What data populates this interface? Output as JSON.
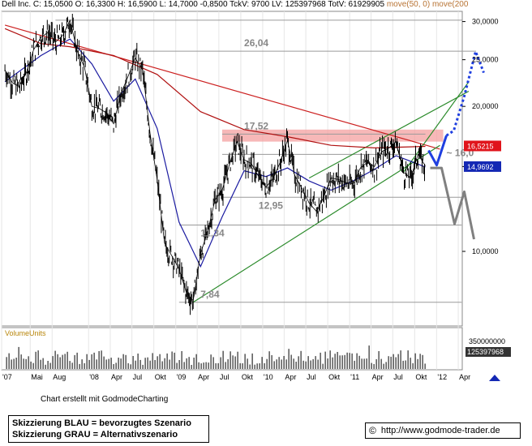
{
  "header": {
    "symbol": "Dell Inc.",
    "text": "C: 15,0500  O: 16,3300  H: 16,5900  L: 14,7000  -0,8500  TckV: 9700  LV: 125397968  TotV: 61929905",
    "ma_text": "move(50, 0)  move(200"
  },
  "volume_label": "VolumeUnits",
  "credit": "Chart erstellt mit GodmodeCharting",
  "legend": {
    "line1": "Skizzierung BLAU = bevorzugtes Szenario",
    "line2": "Skizzierung GRAU = Alternativszenario"
  },
  "footer": {
    "copyright_symbol": "©",
    "url": "http://www.godmode-trader.de"
  },
  "colors": {
    "price": "#000000",
    "ma50": "#1a1aa0",
    "ma200": "#b01010",
    "downtrend": "#cc2020",
    "channel": "#2a8a2a",
    "resistance_zone": "#f4a0a0",
    "levels": "#888888",
    "blue_scenario": "#1f3fe0",
    "grey_scenario": "#808080",
    "price_badge": "#e0141b",
    "ma_badge": "#1428b4"
  },
  "chart_data": [
    {
      "type": "line",
      "panel": "price",
      "yscale": "log",
      "ylim": [
        7.0,
        31.5
      ],
      "x_range": [
        "2007-01",
        "2012-06"
      ],
      "x_ticks": [
        {
          "date": "2007-01",
          "label": "'07"
        },
        {
          "date": "2007-05",
          "label": "Mai"
        },
        {
          "date": "2007-08",
          "label": "Aug"
        },
        {
          "date": "2008-01",
          "label": "'08"
        },
        {
          "date": "2008-04",
          "label": "Apr"
        },
        {
          "date": "2008-07",
          "label": "Jul"
        },
        {
          "date": "2008-10",
          "label": "Okt"
        },
        {
          "date": "2009-01",
          "label": "'09"
        },
        {
          "date": "2009-04",
          "label": "Apr"
        },
        {
          "date": "2009-07",
          "label": "Jul"
        },
        {
          "date": "2009-10",
          "label": "Okt"
        },
        {
          "date": "2010-01",
          "label": "'10"
        },
        {
          "date": "2010-04",
          "label": "Apr"
        },
        {
          "date": "2010-07",
          "label": "Jul"
        },
        {
          "date": "2010-10",
          "label": "Okt"
        },
        {
          "date": "2011-01",
          "label": "'11"
        },
        {
          "date": "2011-04",
          "label": "Apr"
        },
        {
          "date": "2011-07",
          "label": "Jul"
        },
        {
          "date": "2011-10",
          "label": "Okt"
        },
        {
          "date": "2012-01",
          "label": "'12"
        },
        {
          "date": "2012-04",
          "label": "Apr"
        }
      ],
      "y_ticks": [
        {
          "value": 10,
          "label": "10,0000"
        },
        {
          "value": 15,
          "label": "15,0000"
        },
        {
          "value": 20,
          "label": "20,0000"
        },
        {
          "value": 25,
          "label": "25,0000"
        },
        {
          "value": 30,
          "label": "30,0000"
        }
      ],
      "series": [
        {
          "role": "price",
          "points": [
            [
              "2007-01",
              23.8
            ],
            [
              "2007-02",
              22.4
            ],
            [
              "2007-03",
              22.0
            ],
            [
              "2007-04",
              23.5
            ],
            [
              "2007-05",
              26.2
            ],
            [
              "2007-06",
              27.8
            ],
            [
              "2007-07",
              28.5
            ],
            [
              "2007-08",
              27.2
            ],
            [
              "2007-09",
              28.1
            ],
            [
              "2007-10",
              30.2
            ],
            [
              "2007-11",
              26.0
            ],
            [
              "2007-12",
              24.1
            ],
            [
              "2008-01",
              20.0
            ],
            [
              "2008-02",
              19.8
            ],
            [
              "2008-03",
              19.4
            ],
            [
              "2008-04",
              18.4
            ],
            [
              "2008-05",
              21.2
            ],
            [
              "2008-06",
              23.1
            ],
            [
              "2008-07",
              25.2
            ],
            [
              "2008-08",
              23.8
            ],
            [
              "2008-09",
              17.6
            ],
            [
              "2008-10",
              14.1
            ],
            [
              "2008-11",
              10.4
            ],
            [
              "2008-12",
              9.8
            ],
            [
              "2009-01",
              9.2
            ],
            [
              "2009-02",
              8.2
            ],
            [
              "2009-03",
              7.9
            ],
            [
              "2009-04",
              9.9
            ],
            [
              "2009-05",
              11.0
            ],
            [
              "2009-06",
              12.8
            ],
            [
              "2009-07",
              13.4
            ],
            [
              "2009-08",
              15.2
            ],
            [
              "2009-09",
              16.9
            ],
            [
              "2009-10",
              15.5
            ],
            [
              "2009-11",
              15.2
            ],
            [
              "2009-12",
              14.3
            ],
            [
              "2010-01",
              13.6
            ],
            [
              "2010-02",
              14.2
            ],
            [
              "2010-03",
              15.3
            ],
            [
              "2010-04",
              17.0
            ],
            [
              "2010-05",
              14.4
            ],
            [
              "2010-06",
              13.5
            ],
            [
              "2010-07",
              12.6
            ],
            [
              "2010-08",
              12.1
            ],
            [
              "2010-09",
              13.0
            ],
            [
              "2010-10",
              14.2
            ],
            [
              "2010-11",
              14.1
            ],
            [
              "2010-12",
              13.9
            ],
            [
              "2011-01",
              13.8
            ],
            [
              "2011-02",
              14.9
            ],
            [
              "2011-03",
              15.3
            ],
            [
              "2011-04",
              15.0
            ],
            [
              "2011-05",
              16.1
            ],
            [
              "2011-06",
              16.4
            ],
            [
              "2011-07",
              16.9
            ],
            [
              "2011-08",
              14.6
            ],
            [
              "2011-09",
              14.2
            ],
            [
              "2011-10",
              15.9
            ],
            [
              "2011-11",
              15.05
            ]
          ]
        },
        {
          "role": "ma50",
          "points": [
            [
              "2007-01",
              22.5
            ],
            [
              "2007-06",
              25.5
            ],
            [
              "2007-10",
              27.6
            ],
            [
              "2008-01",
              24.5
            ],
            [
              "2008-04",
              20.5
            ],
            [
              "2008-07",
              22.8
            ],
            [
              "2008-10",
              18.0
            ],
            [
              "2009-01",
              11.5
            ],
            [
              "2009-04",
              9.3
            ],
            [
              "2009-07",
              11.8
            ],
            [
              "2009-10",
              14.7
            ],
            [
              "2010-01",
              14.3
            ],
            [
              "2010-04",
              14.9
            ],
            [
              "2010-07",
              14.0
            ],
            [
              "2010-10",
              13.4
            ],
            [
              "2011-01",
              14.0
            ],
            [
              "2011-04",
              14.8
            ],
            [
              "2011-07",
              15.8
            ],
            [
              "2011-11",
              14.97
            ]
          ]
        },
        {
          "role": "ma200",
          "points": [
            [
              "2007-01",
              29.0
            ],
            [
              "2007-06",
              27.0
            ],
            [
              "2007-10",
              26.6
            ],
            [
              "2008-04",
              25.5
            ],
            [
              "2008-10",
              23.3
            ],
            [
              "2009-04",
              19.5
            ],
            [
              "2009-10",
              17.9
            ],
            [
              "2010-04",
              17.3
            ],
            [
              "2010-10",
              16.6
            ],
            [
              "2011-04",
              16.4
            ],
            [
              "2011-11",
              16.52
            ]
          ]
        }
      ],
      "annotations": {
        "level_labels": [
          {
            "value": 26.04,
            "label": "26,04"
          },
          {
            "value": 17.52,
            "label": "17,52"
          },
          {
            "value": 12.95,
            "label": "12,95"
          },
          {
            "value": 11.34,
            "label": "11,34"
          },
          {
            "value": 7.84,
            "label": "7,84"
          },
          {
            "value": 16.0,
            "label": "~ 16,0"
          }
        ],
        "price_badges": [
          {
            "value": 16.5215,
            "label": "16,5215",
            "role": "ma200"
          },
          {
            "value": 14.9692,
            "label": "14,9692",
            "role": "ma50"
          }
        ]
      }
    },
    {
      "type": "bar",
      "panel": "volume",
      "title": "VolumeUnits",
      "y_ticks": [
        {
          "value": 350000000,
          "label": "350000000"
        },
        {
          "value": 125397968,
          "label": "125397968"
        }
      ]
    }
  ]
}
